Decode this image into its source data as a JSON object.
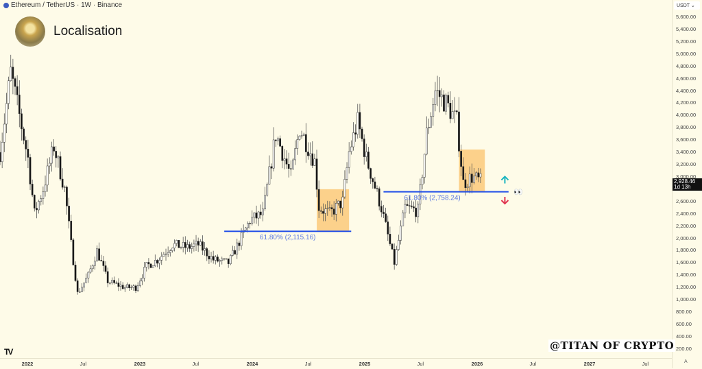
{
  "header": {
    "symbol_line": "Ethereum / TetherUS · 1W · Binance",
    "icon": "ethereum-logo-icon"
  },
  "brand": {
    "name": "Localisation"
  },
  "watermark": "@TITAN OF CRYPTO",
  "currency_selector": "USDT ⌄",
  "price_tag": {
    "price": "2,928.46",
    "countdown": "1d 13h"
  },
  "auto_scale_label": "A",
  "colors": {
    "background": "#fefbe8",
    "fib_line": "#2350e8",
    "fib_label": "#5a78e0",
    "zone_fill": "#fcc97a",
    "arrow_up": "#1bb5c0",
    "arrow_down": "#e0344f",
    "candle_up": "#ffffff",
    "candle_down": "#111111"
  },
  "chart_data": {
    "type": "candlestick",
    "interval": "1W",
    "ylim": [
      100,
      5700
    ],
    "y_ticks": [
      "5,600.00",
      "5,400.00",
      "5,200.00",
      "5,000.00",
      "4,800.00",
      "4,600.00",
      "4,400.00",
      "4,200.00",
      "4,000.00",
      "3,800.00",
      "3,600.00",
      "3,400.00",
      "3,200.00",
      "3,000.00",
      "2,600.00",
      "2,400.00",
      "2,200.00",
      "2,000.00",
      "1,800.00",
      "1,600.00",
      "1,400.00",
      "1,200.00",
      "1,000.00",
      "800.00",
      "600.00",
      "400.00",
      "200.00"
    ],
    "x_ticks": [
      {
        "date": "2022-01-01",
        "label": "2022"
      },
      {
        "date": "2022-07-01",
        "label": "Jul"
      },
      {
        "date": "2023-01-01",
        "label": "2023"
      },
      {
        "date": "2023-07-01",
        "label": "Jul"
      },
      {
        "date": "2024-01-01",
        "label": "2024"
      },
      {
        "date": "2024-07-01",
        "label": "Jul"
      },
      {
        "date": "2025-01-01",
        "label": "2025"
      },
      {
        "date": "2025-07-01",
        "label": "Jul"
      },
      {
        "date": "2026-01-01",
        "label": "2026"
      },
      {
        "date": "2026-07-01",
        "label": "Jul"
      },
      {
        "date": "2027-01-01",
        "label": "2027"
      },
      {
        "date": "2027-07-01",
        "label": "Jul"
      }
    ],
    "price_path": [
      [
        "2021-10-04",
        3400
      ],
      [
        "2021-11-08",
        4700
      ],
      [
        "2021-12-06",
        4000
      ],
      [
        "2022-01-03",
        3300
      ],
      [
        "2022-01-24",
        2400
      ],
      [
        "2022-02-21",
        2800
      ],
      [
        "2022-03-28",
        3500
      ],
      [
        "2022-05-02",
        2800
      ],
      [
        "2022-05-23",
        1900
      ],
      [
        "2022-06-13",
        1100
      ],
      [
        "2022-07-18",
        1400
      ],
      [
        "2022-08-15",
        1800
      ],
      [
        "2022-09-19",
        1300
      ],
      [
        "2022-11-14",
        1200
      ],
      [
        "2022-12-19",
        1200
      ],
      [
        "2023-01-23",
        1550
      ],
      [
        "2023-02-27",
        1650
      ],
      [
        "2023-04-17",
        1900
      ],
      [
        "2023-06-05",
        1850
      ],
      [
        "2023-07-10",
        1900
      ],
      [
        "2023-08-28",
        1650
      ],
      [
        "2023-10-16",
        1600
      ],
      [
        "2023-11-20",
        1950
      ],
      [
        "2023-12-25",
        2300
      ],
      [
        "2024-02-05",
        2400
      ],
      [
        "2024-03-11",
        3500
      ],
      [
        "2024-03-18",
        3700
      ],
      [
        "2024-05-06",
        3000
      ],
      [
        "2024-06-03",
        3800
      ],
      [
        "2024-07-22",
        3250
      ],
      [
        "2024-08-05",
        2500
      ],
      [
        "2024-09-09",
        2400
      ],
      [
        "2024-10-21",
        2600
      ],
      [
        "2024-11-11",
        3400
      ],
      [
        "2024-12-09",
        3900
      ],
      [
        "2025-01-06",
        3300
      ],
      [
        "2025-02-24",
        2500
      ],
      [
        "2025-03-24",
        1900
      ],
      [
        "2025-04-07",
        1600
      ],
      [
        "2025-05-12",
        2500
      ],
      [
        "2025-06-23",
        2450
      ],
      [
        "2025-07-21",
        3700
      ],
      [
        "2025-08-18",
        4400
      ],
      [
        "2025-09-22",
        4200
      ],
      [
        "2025-10-27",
        3900
      ],
      [
        "2025-11-17",
        2900
      ],
      [
        "2025-12-15",
        3000
      ],
      [
        "2026-01-12",
        2928.46
      ]
    ],
    "annotations": {
      "fib_levels": [
        {
          "label": "61.80% (2,115.16)",
          "price": 2115.16,
          "from": "2023-10-02",
          "to": "2024-11-18"
        },
        {
          "label": "61.80% (2,758.24)",
          "price": 2758.24,
          "from": "2025-03-03",
          "to": "2026-04-13"
        }
      ],
      "zones": [
        {
          "from": "2024-07-29",
          "to": "2024-11-11",
          "low": 2115,
          "high": 2800
        },
        {
          "from": "2025-11-03",
          "to": "2026-01-26",
          "low": 2758,
          "high": 3446
        }
      ],
      "arrows": [
        {
          "direction": "up",
          "date": "2026-04-01",
          "price": 2950
        },
        {
          "direction": "down",
          "date": "2026-04-01",
          "price": 2620
        }
      ],
      "emoji": {
        "symbol": "👀",
        "date": "2026-05-15",
        "price": 2758
      }
    }
  }
}
